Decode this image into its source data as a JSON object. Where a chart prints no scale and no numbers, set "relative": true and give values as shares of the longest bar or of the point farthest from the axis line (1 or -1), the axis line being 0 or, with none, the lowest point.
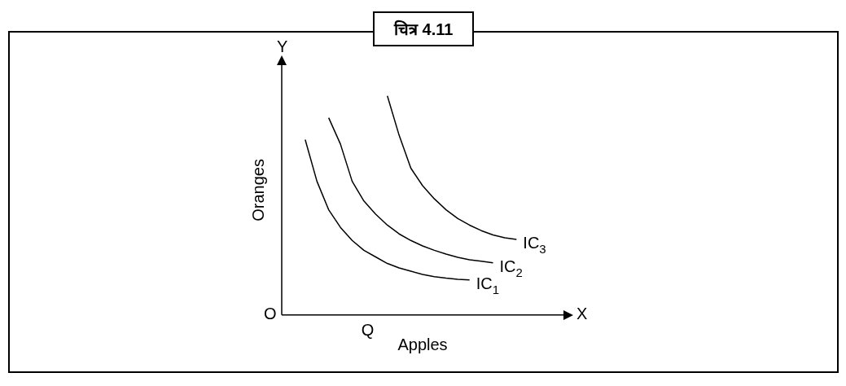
{
  "chart_data": {
    "type": "line",
    "title": "चित्र 4.11",
    "xlabel": "Apples",
    "ylabel": "Oranges",
    "relative": true,
    "legend": false,
    "grid": false,
    "marker": "none",
    "line_style": "solid",
    "annotations": [
      "O",
      "Q",
      "X",
      "Y"
    ],
    "categories": [
      null,
      null,
      null,
      null,
      null,
      null,
      null,
      null,
      null,
      null,
      null,
      null,
      null,
      null,
      null,
      null,
      null,
      null,
      null,
      null,
      null,
      null,
      null,
      null,
      null
    ],
    "series": [
      {
        "name": "IC$_{1}$",
        "color": "#000000",
        "values": [
          null,
          null,
          0.8,
          0.61,
          0.48,
          0.4,
          0.34,
          0.295,
          0.265,
          0.235,
          0.215,
          0.2,
          0.185,
          0.175,
          0.168,
          0.163,
          0.16,
          null,
          null,
          null,
          null,
          null,
          null,
          null,
          null
        ]
      },
      {
        "name": "IC$_{2}$",
        "color": "#000000",
        "values": [
          null,
          null,
          null,
          null,
          0.9,
          0.78,
          0.61,
          0.52,
          0.46,
          0.41,
          0.37,
          0.34,
          0.315,
          0.295,
          0.278,
          0.263,
          0.252,
          0.245,
          0.238,
          null,
          null,
          null,
          null,
          null,
          null
        ]
      },
      {
        "name": "IC$_{3}$",
        "color": "#000000",
        "values": [
          null,
          null,
          null,
          null,
          null,
          null,
          null,
          null,
          null,
          1,
          0.82,
          0.67,
          0.59,
          0.53,
          0.48,
          0.44,
          0.41,
          0.385,
          0.365,
          0.352,
          0.345,
          null,
          null,
          null,
          null
        ]
      }
    ]
  }
}
